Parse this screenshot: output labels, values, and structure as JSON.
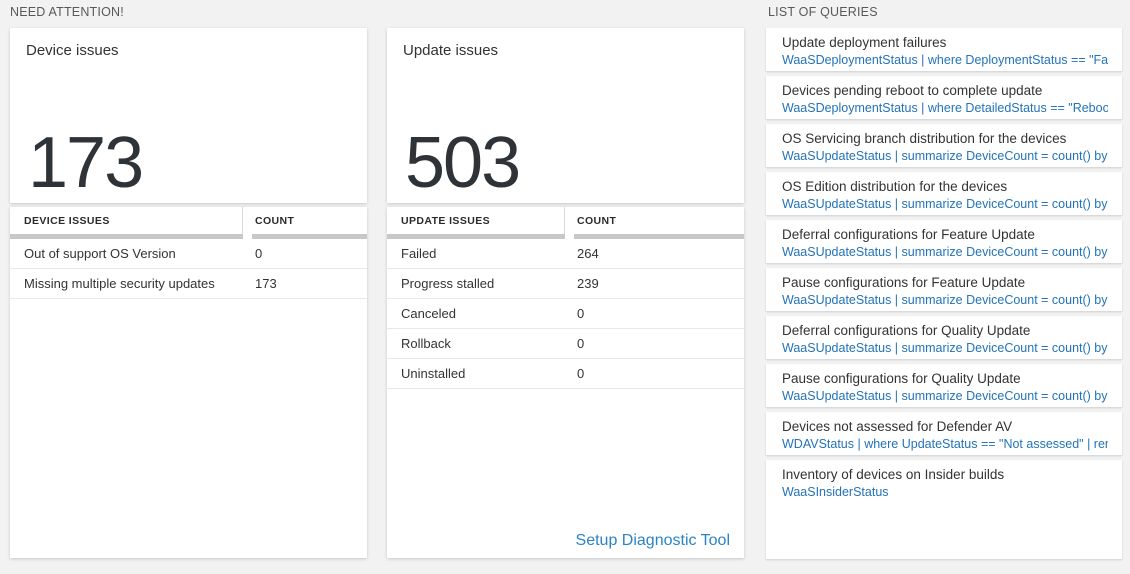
{
  "labels": {
    "need_attention": "NEED ATTENTION!",
    "list_of_queries": "LIST OF QUERIES"
  },
  "colors": {
    "accent_blue": "#2373b8",
    "link_blue": "#2b83c7",
    "big_number": "#2e3338",
    "page_background": "#f2f2f2"
  },
  "cards": {
    "device": {
      "title": "Device issues",
      "count": "173",
      "table": {
        "headers": [
          "DEVICE ISSUES",
          "COUNT"
        ],
        "rows": [
          {
            "label": "Out of support OS Version",
            "count": "0"
          },
          {
            "label": "Missing multiple security updates",
            "count": "173"
          }
        ]
      }
    },
    "update": {
      "title": "Update issues",
      "count": "503",
      "table": {
        "headers": [
          "UPDATE ISSUES",
          "COUNT"
        ],
        "rows": [
          {
            "label": "Failed",
            "count": "264"
          },
          {
            "label": "Progress stalled",
            "count": "239"
          },
          {
            "label": "Canceled",
            "count": "0"
          },
          {
            "label": "Rollback",
            "count": "0"
          },
          {
            "label": "Uninstalled",
            "count": "0"
          }
        ]
      },
      "footer_link": "Setup Diagnostic Tool"
    }
  },
  "queries": [
    {
      "title": "Update deployment failures",
      "query": "WaaSDeploymentStatus | where DeploymentStatus == \"Failed\" |..."
    },
    {
      "title": "Devices pending reboot to complete update",
      "query": "WaaSDeploymentStatus | where DetailedStatus == \"Reboot pend..."
    },
    {
      "title": "OS Servicing branch distribution for the devices",
      "query": "WaaSUpdateStatus | summarize DeviceCount = count() by OSSer..."
    },
    {
      "title": "OS Edition distribution for the devices",
      "query": "WaaSUpdateStatus | summarize DeviceCount = count() by OSEdit..."
    },
    {
      "title": "Deferral configurations for Feature Update",
      "query": "WaaSUpdateStatus | summarize DeviceCount = count() by Featur..."
    },
    {
      "title": "Pause configurations for Feature Update",
      "query": "WaaSUpdateStatus | summarize DeviceCount = count() by Featur..."
    },
    {
      "title": "Deferral configurations for Quality Update",
      "query": "WaaSUpdateStatus | summarize DeviceCount = count() by Qualit..."
    },
    {
      "title": "Pause configurations for Quality Update",
      "query": "WaaSUpdateStatus | summarize DeviceCount = count() by Qualit..."
    },
    {
      "title": "Devices not assessed for Defender AV",
      "query": "WDAVStatus | where UpdateStatus == \"Not assessed\" | render ta..."
    },
    {
      "title": "Inventory of devices on Insider builds",
      "query": "WaaSInsiderStatus"
    }
  ]
}
